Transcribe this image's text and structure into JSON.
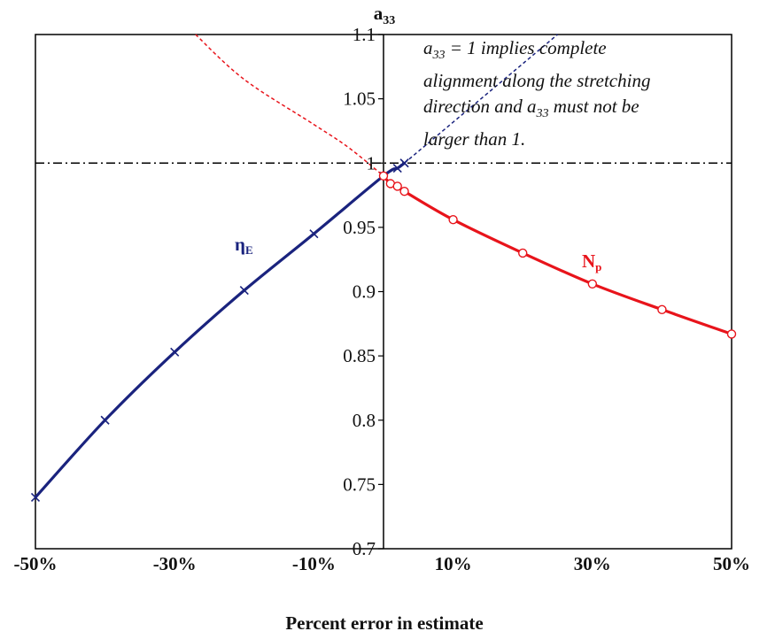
{
  "chart_data": {
    "type": "line",
    "ylabel_main": "a",
    "ylabel_sub": "33",
    "xlabel": "Percent error in estimate",
    "xlim": [
      -50,
      50
    ],
    "ylim": [
      0.7,
      1.1
    ],
    "yticks": [
      0.7,
      0.75,
      0.8,
      0.85,
      0.9,
      0.95,
      1,
      1.05,
      1.1
    ],
    "ytick_labels": [
      "0.7",
      "0.75",
      "0.8",
      "0.85",
      "0.9",
      "0.95",
      "1",
      "1.05",
      "1.1"
    ],
    "xticks": [
      -50,
      -30,
      -10,
      10,
      30,
      50
    ],
    "xtick_labels": [
      "-50%",
      "-30%",
      "-10%",
      "10%",
      "30%",
      "50%"
    ],
    "reference_line_y": 1,
    "annotation": {
      "line1_a": "a",
      "line1_sub": "33",
      "line1_rest": " = 1 implies complete",
      "line2": "alignment along the stretching",
      "line3_start": "direction and ",
      "line3_a": "a",
      "line3_sub": "33",
      "line3_rest": " must not be",
      "line4": "larger than 1."
    },
    "series": [
      {
        "label_main": "η",
        "label_sub": "E",
        "color": "#1a237e",
        "marker": "x",
        "x": [
          -50,
          -40,
          -30,
          -20,
          -10,
          0,
          2,
          3
        ],
        "y": [
          0.74,
          0.8,
          0.853,
          0.901,
          0.945,
          0.99,
          0.996,
          1.0
        ],
        "extrapolation": {
          "x": [
            3,
            25
          ],
          "y": [
            1.0,
            1.1
          ]
        }
      },
      {
        "label_main": "N",
        "label_sub": "p",
        "color": "#e8141b",
        "marker": "circle",
        "x": [
          0,
          1,
          2,
          3,
          10,
          20,
          30,
          40,
          50
        ],
        "y": [
          0.99,
          0.984,
          0.982,
          0.978,
          0.956,
          0.93,
          0.906,
          0.886,
          0.867
        ],
        "extrapolation": {
          "x": [
            -27,
            -20,
            -10,
            -5,
            0
          ],
          "y": [
            1.1,
            1.065,
            1.03,
            1.012,
            0.99
          ]
        }
      }
    ]
  }
}
